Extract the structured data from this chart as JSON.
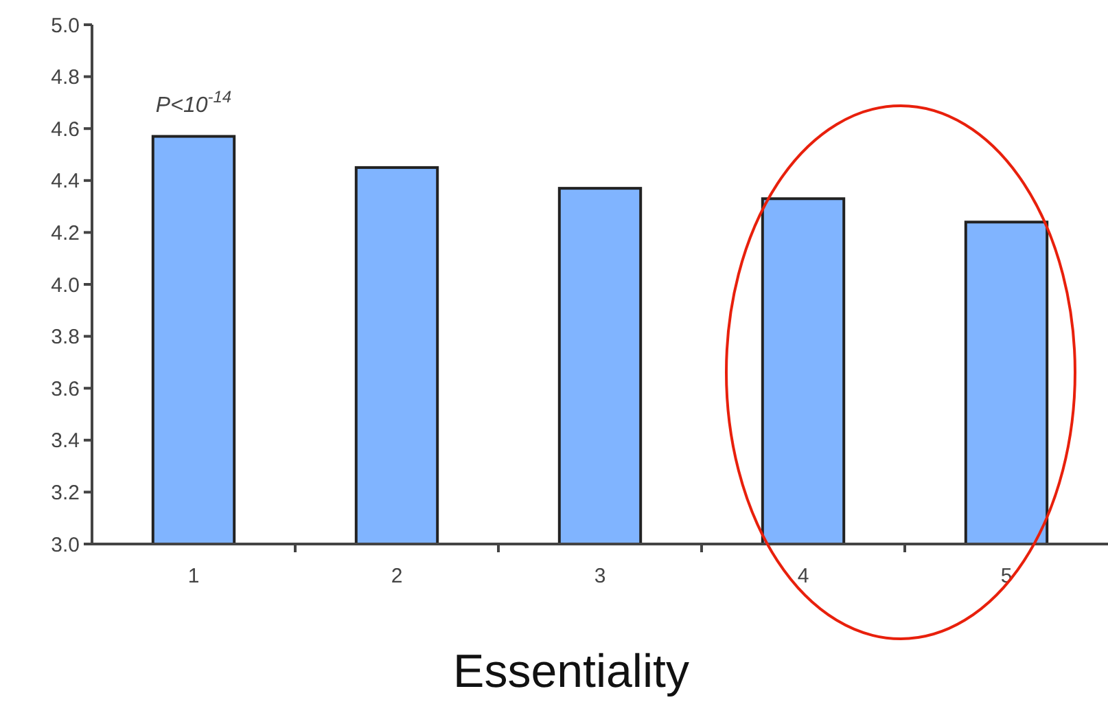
{
  "chart_data": {
    "type": "bar",
    "categories": [
      "1",
      "2",
      "3",
      "4",
      "5"
    ],
    "values": [
      4.57,
      4.45,
      4.37,
      4.33,
      4.24
    ],
    "color": "#80b4ff",
    "xlabel": "Essentiality",
    "ylim": [
      3.0,
      5.0
    ],
    "yticks": [
      {
        "value": 3,
        "label": "3.0"
      },
      {
        "value": 3.2,
        "label": "3.2"
      },
      {
        "value": 3.4,
        "label": "3.4"
      },
      {
        "value": 3.6,
        "label": "3.6"
      },
      {
        "value": 3.8,
        "label": "3.8"
      },
      {
        "value": 4,
        "label": "4.0"
      },
      {
        "value": 4.2,
        "label": "4.2"
      },
      {
        "value": 4.4,
        "label": "4.4"
      },
      {
        "value": 4.6,
        "label": "4.6"
      },
      {
        "value": 4.8,
        "label": "4.8"
      },
      {
        "value": 5,
        "label": "5.0"
      }
    ],
    "annotations": [
      {
        "text": "P<10$^{-14}$",
        "x": "1",
        "y": 4.57
      }
    ],
    "grid": false
  }
}
